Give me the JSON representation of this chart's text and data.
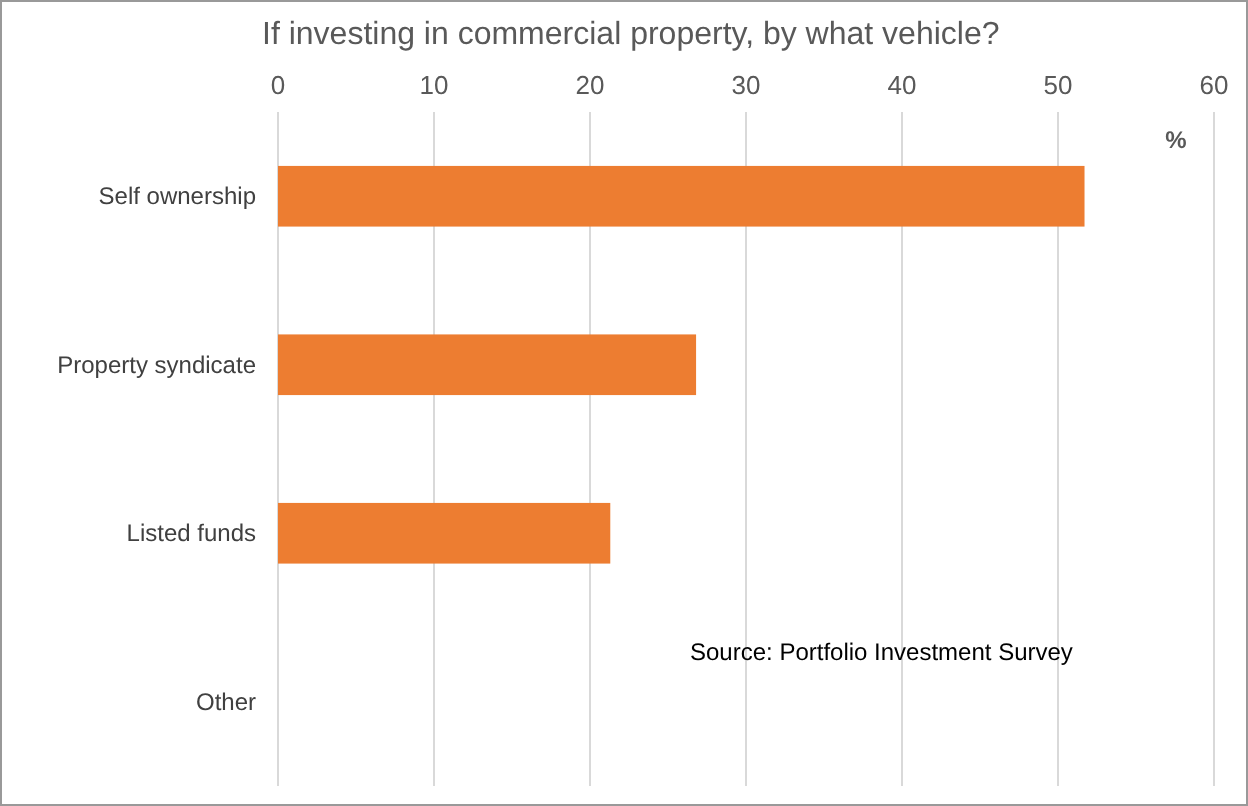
{
  "chart_data": {
    "type": "bar",
    "orientation": "horizontal",
    "title": "If investing in commercial property, by what vehicle?",
    "xlabel": "%",
    "categories": [
      "Self ownership",
      "Property syndicate",
      "Listed funds",
      "Other"
    ],
    "values": [
      51.7,
      26.8,
      21.3,
      0
    ],
    "color": "#ed7d31",
    "xlim": [
      0,
      60
    ],
    "xticks": [
      0,
      10,
      20,
      30,
      40,
      50,
      60
    ],
    "grid": "x",
    "annotations": [
      "Source: Portfolio Investment Survey"
    ]
  }
}
